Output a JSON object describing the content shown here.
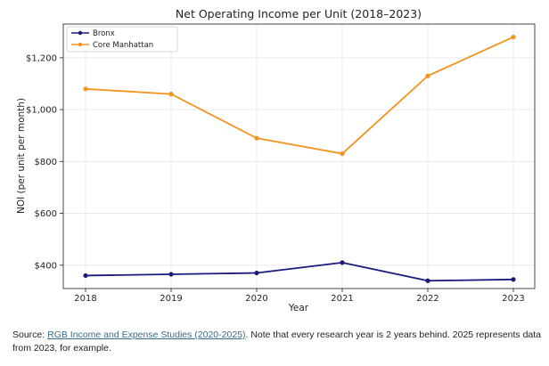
{
  "chart_data": {
    "type": "line",
    "title": "Net Operating Income per Unit (2018–2023)",
    "xlabel": "Year",
    "ylabel": "NOI (per unit per month)",
    "categories": [
      "2018",
      "2019",
      "2020",
      "2021",
      "2022",
      "2023"
    ],
    "series": [
      {
        "name": "Bronx",
        "color": "#1a1a7e",
        "values": [
          360,
          365,
          370,
          410,
          340,
          345
        ]
      },
      {
        "name": "Core Manhattan",
        "color": "#f5921e",
        "values": [
          1080,
          1060,
          890,
          830,
          1130,
          1280
        ]
      }
    ],
    "ylim": [
      310,
      1330
    ],
    "yticks": [
      400,
      600,
      800,
      1000,
      1200
    ],
    "ytick_labels": [
      "$400",
      "$600",
      "$800",
      "$1,000",
      "$1,200"
    ],
    "grid": true,
    "legend_position": "top-left"
  },
  "caption": {
    "prefix": "Source: ",
    "link_text": "RGB Income and Expense Studies (2020-2025)",
    "suffix": ". Note that every research year is 2 years behind. 2025 represents data from 2023, for example."
  }
}
